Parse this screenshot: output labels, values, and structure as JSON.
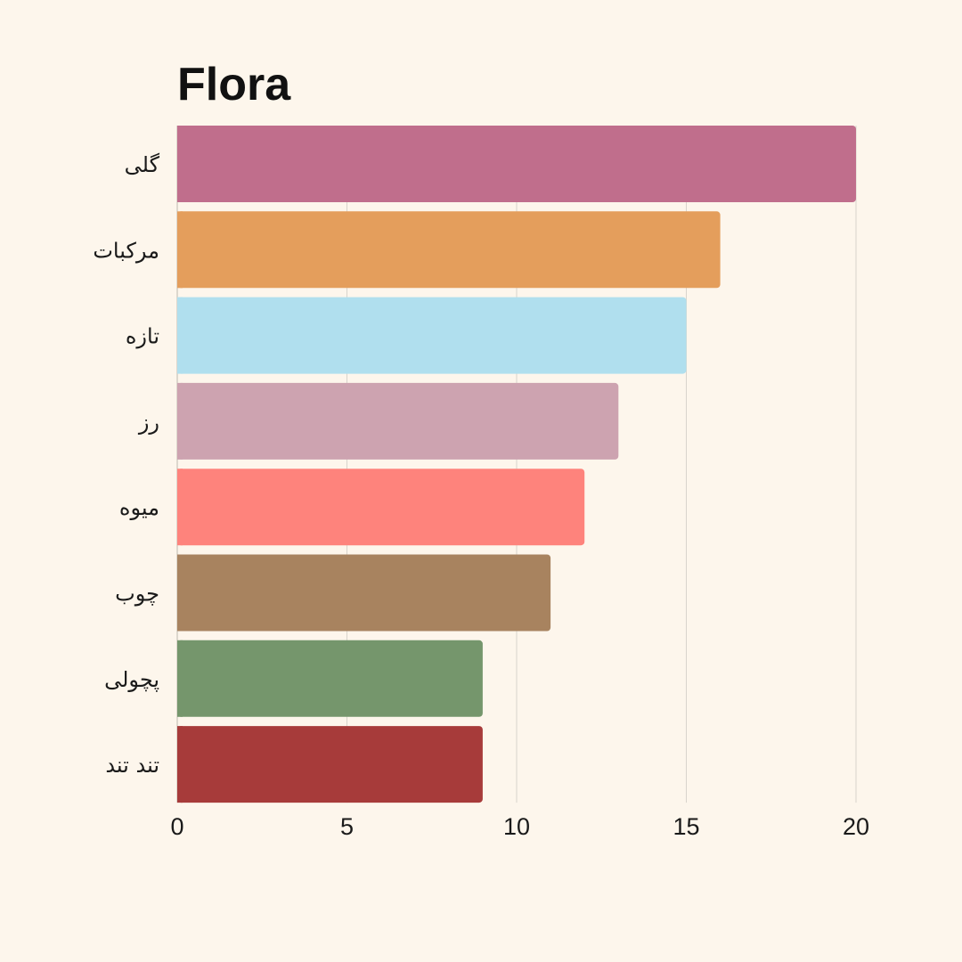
{
  "chart_data": {
    "type": "bar",
    "orientation": "horizontal",
    "title": "Flora",
    "xlabel": "",
    "ylabel": "",
    "categories": [
      "گلی",
      "مرکبات",
      "تازه",
      "رز",
      "میوه",
      "چوب",
      "پچولی",
      "تند تند"
    ],
    "values": [
      20,
      16,
      15,
      13,
      12,
      11,
      9,
      9
    ],
    "colors": [
      "#c06e8c",
      "#e49e5c",
      "#b0dfee",
      "#cda3b0",
      "#fe837c",
      "#a8835f",
      "#75966c",
      "#a73b3a"
    ],
    "xlim": [
      0,
      20
    ],
    "xticks": [
      "0",
      "5",
      "10",
      "15",
      "20"
    ],
    "grid": true,
    "legend": "none"
  }
}
